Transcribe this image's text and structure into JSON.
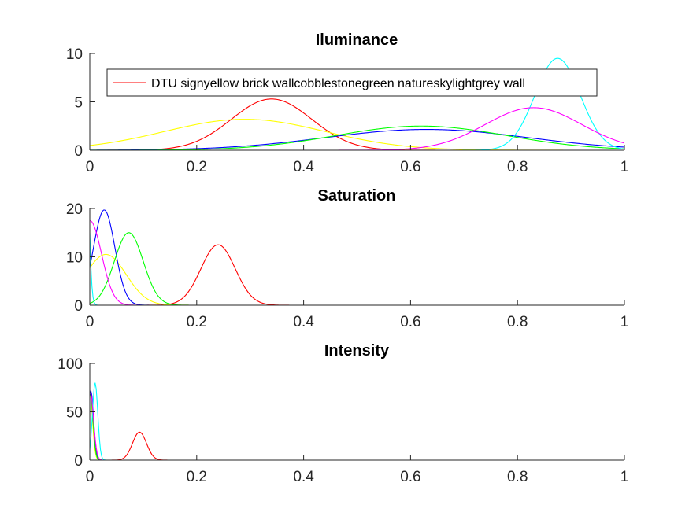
{
  "chart_data": [
    {
      "type": "line",
      "title": "Iluminance",
      "xlim": [
        0,
        1
      ],
      "ylim": [
        0,
        10
      ],
      "xticks": [
        "0",
        "0.2",
        "0.4",
        "0.6",
        "0.8",
        "1"
      ],
      "yticks": [
        "0",
        "5",
        "10"
      ],
      "legend": {
        "placement": "top",
        "entries": [
          "DTU sign",
          "yellow brick wall",
          "cobblestone",
          "green nature",
          "sky",
          "lightgrey wall"
        ],
        "text": "DTU signyellow brick wallcobblestonegreen natureskylightgrey wall",
        "sample_color": "#ff0000"
      },
      "series": [
        {
          "name": "DTU sign",
          "color": "#ff0000",
          "mean": 0.34,
          "sd": 0.075,
          "peak": 5.3
        },
        {
          "name": "yellow brick wall",
          "color": "#ffff00",
          "mean": 0.29,
          "sd": 0.15,
          "peak": 3.2
        },
        {
          "name": "cobblestone",
          "color": "#0000ff",
          "mean": 0.63,
          "sd": 0.19,
          "peak": 2.15
        },
        {
          "name": "green nature",
          "color": "#00ff00",
          "mean": 0.62,
          "sd": 0.16,
          "peak": 2.5
        },
        {
          "name": "sky",
          "color": "#00ffff",
          "mean": 0.875,
          "sd": 0.042,
          "peak": 9.5
        },
        {
          "name": "lightgrey wall",
          "color": "#ff00ff",
          "mean": 0.83,
          "sd": 0.09,
          "peak": 4.4
        }
      ]
    },
    {
      "type": "line",
      "title": "Saturation",
      "xlim": [
        0,
        1
      ],
      "ylim": [
        0,
        20
      ],
      "xticks": [
        "0",
        "0.2",
        "0.4",
        "0.6",
        "0.8",
        "1"
      ],
      "yticks": [
        "0",
        "10",
        "20"
      ],
      "series": [
        {
          "name": "DTU sign",
          "color": "#ff0000",
          "mean": 0.24,
          "sd": 0.032,
          "peak": 12.5
        },
        {
          "name": "yellow brick wall",
          "color": "#ffff00",
          "mean": 0.03,
          "sd": 0.038,
          "peak": 10.5
        },
        {
          "name": "cobblestone",
          "color": "#0000ff",
          "mean": 0.027,
          "sd": 0.02,
          "peak": 19.7
        },
        {
          "name": "green nature",
          "color": "#00ff00",
          "mean": 0.073,
          "sd": 0.027,
          "peak": 15.0
        },
        {
          "name": "sky",
          "color": "#00ffff",
          "mean": -0.01,
          "sd": 0.006,
          "peak": 60.0
        },
        {
          "name": "lightgrey wall",
          "color": "#ff00ff",
          "mean": 0.0,
          "sd": 0.022,
          "peak": 17.5
        }
      ]
    },
    {
      "type": "line",
      "title": "Intensity",
      "xlim": [
        0,
        1
      ],
      "ylim": [
        0,
        100
      ],
      "xticks": [
        "0",
        "0.2",
        "0.4",
        "0.6",
        "0.8",
        "1"
      ],
      "yticks": [
        "0",
        "50",
        "100"
      ],
      "series": [
        {
          "name": "DTU sign",
          "color": "#ff0000",
          "mean": 0.093,
          "sd": 0.013,
          "peak": 29.0
        },
        {
          "name": "yellow brick wall",
          "color": "#ffff00",
          "mean": 0.0,
          "sd": 0.005,
          "peak": 70.0
        },
        {
          "name": "cobblestone",
          "color": "#0000ff",
          "mean": 0.002,
          "sd": 0.005,
          "peak": 72.0
        },
        {
          "name": "green nature",
          "color": "#00ff00",
          "mean": 0.001,
          "sd": 0.005,
          "peak": 68.0
        },
        {
          "name": "sky",
          "color": "#00ffff",
          "mean": 0.01,
          "sd": 0.005,
          "peak": 80.0
        },
        {
          "name": "lightgrey wall",
          "color": "#ff00ff",
          "mean": 0.001,
          "sd": 0.006,
          "peak": 70.0
        }
      ]
    }
  ]
}
